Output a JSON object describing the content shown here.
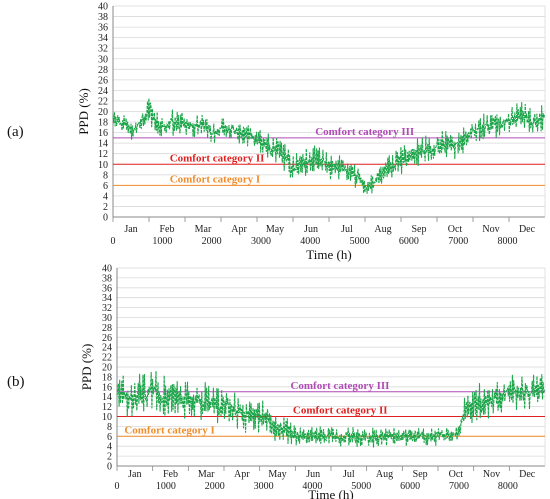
{
  "colors": {
    "data_line": "#1aa548",
    "category_III": "#b04ab5",
    "category_II": "#e02020",
    "category_I": "#f08c2a",
    "grid": "#d9d9d9",
    "axis": "#888888"
  },
  "chart_data": [
    {
      "type": "line",
      "panel_label": "(a)",
      "xlabel": "Time (h)",
      "ylabel": "PPD (%)",
      "xlim": [
        0,
        8760
      ],
      "ylim": [
        0,
        40
      ],
      "x_ticks": [
        0,
        1000,
        2000,
        3000,
        4000,
        5000,
        6000,
        7000,
        8000
      ],
      "y_ticks": [
        0,
        2,
        4,
        6,
        8,
        10,
        12,
        14,
        16,
        18,
        20,
        22,
        24,
        26,
        28,
        30,
        32,
        34,
        36,
        38,
        40
      ],
      "months": [
        "Jan",
        "Feb",
        "Mar",
        "Apr",
        "May",
        "Jun",
        "Jul",
        "Aug",
        "Sep",
        "Oct",
        "Nov",
        "Dec"
      ],
      "grid": "horizontal",
      "reference_lines": [
        {
          "label": "Comfort category III",
          "y": 15,
          "color": "#b04ab5",
          "label_x": 4100
        },
        {
          "label": "Comfort category II",
          "y": 10,
          "color": "#e02020",
          "label_x": 1150
        },
        {
          "label": "Comfort category I",
          "y": 6,
          "color": "#f08c2a",
          "label_x": 1150
        }
      ],
      "series": [
        {
          "color": "#1aa548",
          "x": [
            0,
            150,
            300,
            450,
            600,
            750,
            900,
            1050,
            1200,
            1400,
            1600,
            1800,
            2000,
            2200,
            2400,
            2600,
            2800,
            3000,
            3200,
            3400,
            3600,
            3800,
            4000,
            4200,
            4400,
            4600,
            4800,
            5000,
            5100,
            5300,
            5500,
            5700,
            5900,
            6100,
            6300,
            6500,
            6700,
            6900,
            7100,
            7300,
            7500,
            7700,
            7900,
            8100,
            8300,
            8500,
            8760
          ],
          "y": [
            19.5,
            18,
            17.5,
            17,
            18,
            20.5,
            17.5,
            17,
            18,
            17.5,
            17,
            17.5,
            16,
            16.5,
            16.5,
            15.5,
            15.5,
            14,
            13,
            12.5,
            9.5,
            10,
            10.5,
            11,
            9,
            10,
            8,
            7.5,
            5.5,
            6.5,
            8.5,
            10,
            11,
            12,
            12.5,
            13,
            14,
            13.5,
            14.5,
            16,
            17,
            17.5,
            18,
            18.5,
            19.5,
            18,
            19
          ],
          "band": [
            2.2,
            2.8,
            2.6,
            2.5,
            2.8,
            3.2,
            2.6,
            2.5,
            2.6,
            2.5,
            2.4,
            2.4,
            2.2,
            2.3,
            2.3,
            2.2,
            2.2,
            2.4,
            2.6,
            2.8,
            3.0,
            3.0,
            3.0,
            3.0,
            3.0,
            2.8,
            2.6,
            2.2,
            1.5,
            2.0,
            2.6,
            2.8,
            2.8,
            2.8,
            2.8,
            2.8,
            2.8,
            2.8,
            2.8,
            2.6,
            2.6,
            2.6,
            2.6,
            2.6,
            2.6,
            2.6,
            2.6
          ]
        }
      ]
    },
    {
      "type": "line",
      "panel_label": "(b)",
      "xlabel": "Time (h)",
      "ylabel": "PPD (%)",
      "xlim": [
        0,
        8760
      ],
      "ylim": [
        0,
        40
      ],
      "x_ticks": [
        0,
        1000,
        2000,
        3000,
        4000,
        5000,
        6000,
        7000,
        8000
      ],
      "y_ticks": [
        0,
        2,
        4,
        6,
        8,
        10,
        12,
        14,
        16,
        18,
        20,
        22,
        24,
        26,
        28,
        30,
        32,
        34,
        36,
        38,
        40
      ],
      "months": [
        "Jan",
        "Feb",
        "Mar",
        "Apr",
        "May",
        "Jun",
        "Jul",
        "Aug",
        "Sep",
        "Oct",
        "Nov",
        "Dec"
      ],
      "grid": "horizontal",
      "reference_lines": [
        {
          "label": "Comfort category III",
          "y": 15,
          "color": "#b04ab5",
          "label_x": 3550
        },
        {
          "label": "Comfort category II",
          "y": 10,
          "color": "#e02020",
          "label_x": 3600
        },
        {
          "label": "Comfort category I",
          "y": 6,
          "color": "#f08c2a",
          "label_x": 150
        }
      ],
      "series": [
        {
          "color": "#1aa548",
          "x": [
            0,
            150,
            300,
            450,
            600,
            750,
            900,
            1050,
            1200,
            1400,
            1600,
            1800,
            2000,
            2200,
            2400,
            2600,
            2800,
            3000,
            3200,
            3400,
            3600,
            3800,
            4000,
            4200,
            4400,
            4600,
            4800,
            5000,
            5200,
            5400,
            5600,
            5800,
            6000,
            6200,
            6400,
            6600,
            6800,
            6900,
            7000,
            7100,
            7300,
            7500,
            7700,
            7900,
            8100,
            8300,
            8500,
            8760
          ],
          "y": [
            15,
            14,
            13.5,
            14,
            14.5,
            16,
            14,
            13.5,
            13.5,
            14,
            13,
            13,
            12.5,
            12,
            11.5,
            10.5,
            10.5,
            10,
            8.5,
            7.5,
            6.5,
            6,
            6,
            6,
            6,
            6,
            5.8,
            5.8,
            5.8,
            5.8,
            6,
            6,
            6,
            6,
            6,
            6,
            6,
            6,
            7,
            10.5,
            13,
            13,
            13.5,
            14.5,
            15,
            15,
            14.5,
            15.5
          ],
          "band": [
            4.0,
            4.5,
            4.5,
            4.5,
            4.5,
            5.0,
            4.5,
            4.5,
            4.5,
            4.5,
            4.5,
            4.5,
            4.0,
            4.0,
            4.0,
            4.0,
            4.0,
            3.5,
            3.5,
            3.0,
            2.5,
            2.0,
            2.0,
            2.0,
            2.0,
            2.0,
            2.0,
            2.0,
            2.0,
            2.0,
            2.0,
            2.0,
            2.0,
            2.0,
            2.0,
            2.0,
            2.0,
            2.0,
            2.0,
            3.5,
            4.0,
            4.0,
            4.0,
            4.0,
            4.0,
            4.0,
            4.0,
            4.0
          ]
        }
      ]
    }
  ]
}
